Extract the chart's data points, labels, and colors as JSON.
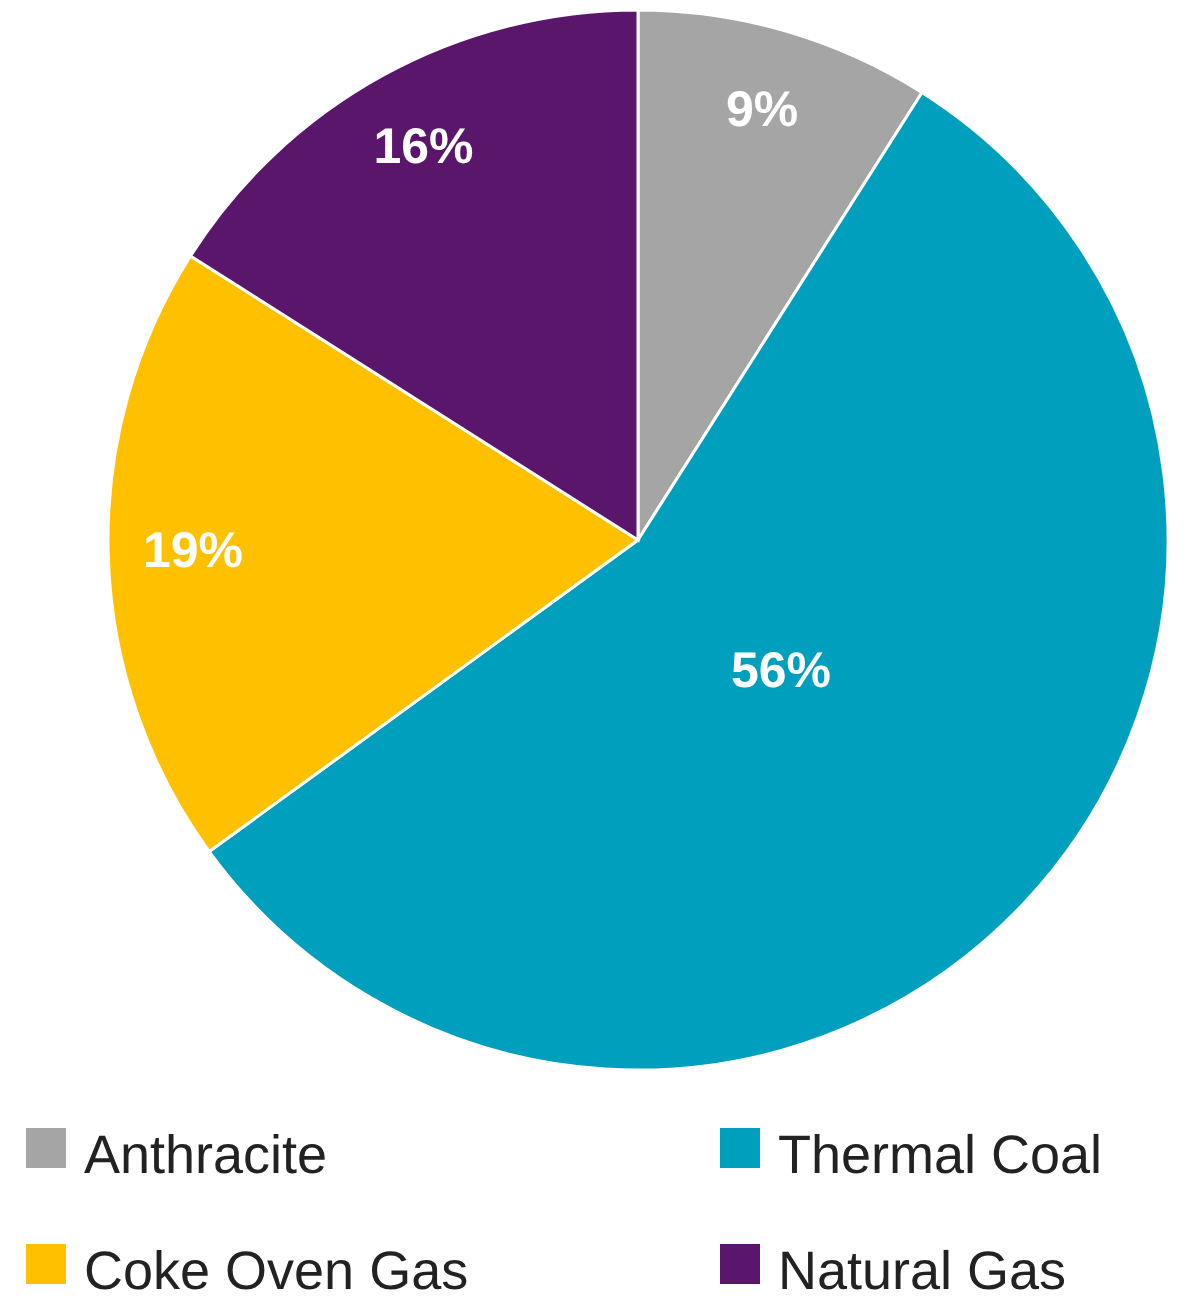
{
  "chart_data": {
    "type": "pie",
    "categories": [
      "Anthracite",
      "Thermal Coal",
      "Coke Oven Gas",
      "Natural Gas"
    ],
    "values": [
      9,
      56,
      19,
      16
    ],
    "colors": [
      "#a5a5a5",
      "#009fbd",
      "#ffc000",
      "#59166a"
    ],
    "value_labels": [
      "9%",
      "56%",
      "19%",
      "16%"
    ],
    "legend": "bottom"
  }
}
